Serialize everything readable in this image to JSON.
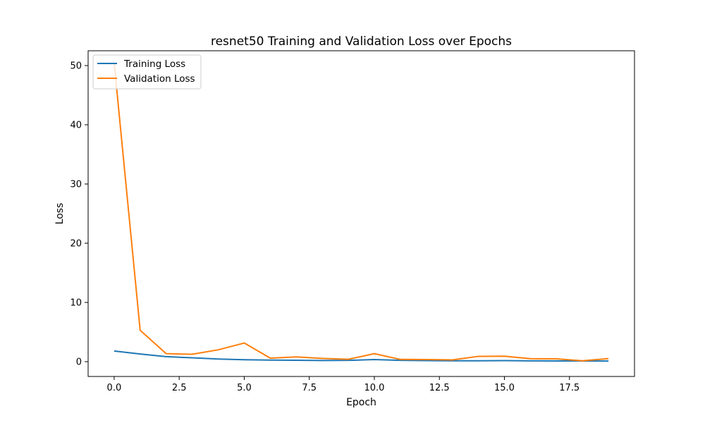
{
  "chart_data": {
    "type": "line",
    "title": "resnet50 Training and Validation Loss over Epochs",
    "xlabel": "Epoch",
    "ylabel": "Loss",
    "xlim": [
      -1,
      20
    ],
    "ylim": [
      -2.5,
      52.5
    ],
    "xticks": [
      0.0,
      2.5,
      5.0,
      7.5,
      10.0,
      12.5,
      15.0,
      17.5
    ],
    "xtick_labels": [
      "0.0",
      "2.5",
      "5.0",
      "7.5",
      "10.0",
      "12.5",
      "15.0",
      "17.5"
    ],
    "yticks": [
      0,
      10,
      20,
      30,
      40,
      50
    ],
    "ytick_labels": [
      "0",
      "10",
      "20",
      "30",
      "40",
      "50"
    ],
    "grid": false,
    "legend_position": "top-left",
    "x": [
      0,
      1,
      2,
      3,
      4,
      5,
      6,
      7,
      8,
      9,
      10,
      11,
      12,
      13,
      14,
      15,
      16,
      17,
      18,
      19
    ],
    "series": [
      {
        "name": "Training Loss",
        "color": "#1f77b4",
        "values": [
          1.8,
          1.3,
          0.85,
          0.65,
          0.45,
          0.32,
          0.27,
          0.24,
          0.2,
          0.22,
          0.35,
          0.22,
          0.18,
          0.15,
          0.15,
          0.18,
          0.14,
          0.12,
          0.12,
          0.1
        ]
      },
      {
        "name": "Validation Loss",
        "color": "#ff7f0e",
        "values": [
          50.5,
          5.3,
          1.35,
          1.25,
          2.0,
          3.15,
          0.6,
          0.8,
          0.55,
          0.4,
          1.35,
          0.38,
          0.35,
          0.3,
          0.9,
          0.92,
          0.5,
          0.48,
          0.15,
          0.52
        ]
      }
    ]
  }
}
